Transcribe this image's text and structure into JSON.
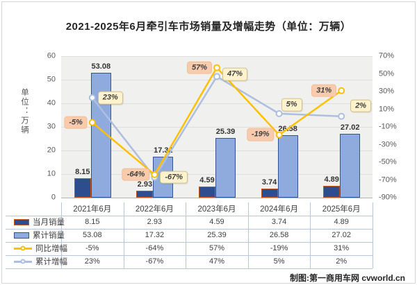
{
  "title": "2021-2025年6月牵引车市场销量及增幅走势（单位：万辆）",
  "credit": "制图:第一商用车网 cvworld.cn",
  "left_axis": {
    "label": "单位：万辆",
    "min": 0,
    "max": 60,
    "ticks": [
      "60",
      "50",
      "40",
      "30",
      "20",
      "10",
      "0"
    ]
  },
  "right_axis": {
    "min": -90,
    "max": 70,
    "ticks": [
      "70%",
      "50%",
      "30%",
      "10%",
      "-10%",
      "-30%",
      "-50%",
      "-70%",
      "-90%"
    ]
  },
  "chart_data": {
    "type": "bar+line combo",
    "categories": [
      "2021年6月",
      "2022年6月",
      "2023年6月",
      "2024年6月",
      "2025年6月"
    ],
    "series": [
      {
        "name": "当月销量",
        "type": "bar",
        "axis": "left",
        "values": [
          8.15,
          2.93,
          4.59,
          3.74,
          4.89
        ],
        "labels": [
          "8.15",
          "2.93",
          "4.59",
          "3.74",
          "4.89"
        ],
        "fill": "#2e4d8e",
        "stroke": "#c2571f"
      },
      {
        "name": "累计销量",
        "type": "bar",
        "axis": "left",
        "values": [
          53.08,
          17.32,
          25.39,
          26.58,
          27.02
        ],
        "labels": [
          "53.08",
          "17.32",
          "25.39",
          "26.58",
          "27.02"
        ],
        "fill": "#8faadc",
        "stroke": "#2f5496"
      },
      {
        "name": "同比增幅",
        "type": "line",
        "axis": "right",
        "values": [
          -5,
          -64,
          57,
          -19,
          31
        ],
        "labels": [
          "-5%",
          "-64%",
          "57%",
          "-19%",
          "31%"
        ],
        "color": "#ffc000",
        "label_bg": "#f8cbad"
      },
      {
        "name": "累计增幅",
        "type": "line",
        "axis": "right",
        "values": [
          23,
          -67,
          47,
          5,
          2
        ],
        "labels": [
          "23%",
          "-67%",
          "47%",
          "5%",
          "2%"
        ],
        "color": "#aebede",
        "label_bg": "#fff2cc"
      }
    ],
    "title": "2021-2025年6月牵引车市场销量及增幅走势（单位：万辆）",
    "ylabel": "单位：万辆",
    "ylim_left": [
      0,
      60
    ],
    "ylim_right": [
      -90,
      70
    ],
    "grid": true,
    "plot_bg": "#f0f0ee",
    "legend_position": "data-table-left"
  }
}
